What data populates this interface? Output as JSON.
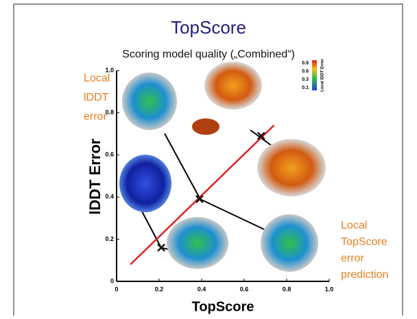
{
  "chart_data": {
    "type": "line",
    "title": "TopScore",
    "subtitle": "Scoring model quality („Combined“)",
    "xlabel": "TopScore",
    "ylabel": "lDDT Error",
    "xlim": [
      0,
      1
    ],
    "ylim": [
      0,
      1
    ],
    "xticks": [
      {
        "value": 0,
        "label": "0"
      },
      0.2,
      0.4,
      0.6,
      0.8,
      {
        "value": 1,
        "label": "1.0"
      }
    ],
    "yticks": [
      {
        "value": 0,
        "label": "0"
      },
      0.2,
      0.4,
      0.6,
      0.8,
      {
        "value": 1,
        "label": "1.0"
      }
    ],
    "series": [
      {
        "color": "#e02020",
        "x": [
          0.065,
          0.74
        ],
        "values": [
          0.08,
          0.74
        ],
        "marker": "none"
      },
      {
        "color": "#111111",
        "x": [
          0.21,
          0.39,
          0.68
        ],
        "values": [
          0.16,
          0.39,
          0.69
        ],
        "marker": "x"
      }
    ],
    "annotations": {
      "left": [
        "Local",
        "lDDT",
        "error"
      ],
      "right": [
        "Local",
        "TopScore",
        "error",
        "prediction"
      ],
      "color": "#e87d1e"
    },
    "colorbar": {
      "title": "Local lDDT Error",
      "ticks": [
        0.8,
        0.6,
        0.3,
        0.1
      ]
    }
  }
}
